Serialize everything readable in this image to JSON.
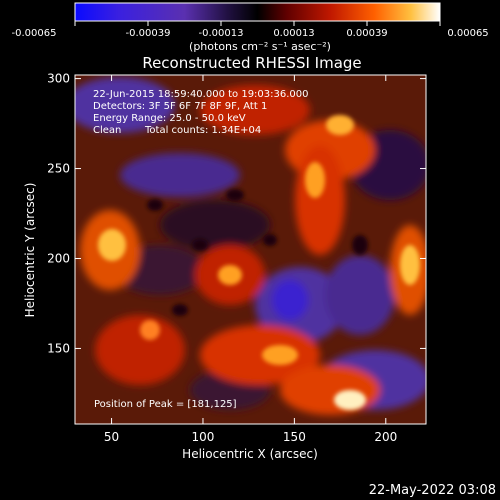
{
  "chart_data": {
    "type": "heatmap",
    "title": "Reconstructed RHESSI Image",
    "xlabel": "Heliocentric X (arcsec)",
    "ylabel": "Heliocentric Y (arcsec)",
    "xlim": [
      30,
      222
    ],
    "ylim": [
      108,
      302
    ],
    "x_ticks": [
      50,
      100,
      150,
      200
    ],
    "y_ticks": [
      150,
      200,
      250,
      300
    ],
    "colorbar": {
      "range": [
        -0.00065,
        0.00065
      ],
      "tick_labels": [
        "-0.00065",
        "-0.00039",
        "-0.00013",
        "0.00013",
        "0.00039",
        "0.00065"
      ],
      "units": "(photons cm⁻² s⁻¹ asec⁻²)",
      "colors": [
        "#0a0aff",
        "#6030c8",
        "#2a0810",
        "#000000",
        "#600000",
        "#c01800",
        "#ff6000",
        "#ffc040",
        "#ffffff"
      ]
    },
    "annotations": {
      "time": "22-Jun-2015 18:59:40.000 to 19:03:36.000",
      "detectors": "Detectors: 3F 5F 6F 7F 8F 9F, Att 1",
      "energy": "Energy Range: 25.0 - 50.0 keV",
      "method": "Clean",
      "counts": "Total counts: 1.34E+04",
      "peak": "Position of Peak = [181,125]"
    },
    "peak": [
      181,
      125
    ],
    "footer_date": "22-May-2022 03:08"
  }
}
